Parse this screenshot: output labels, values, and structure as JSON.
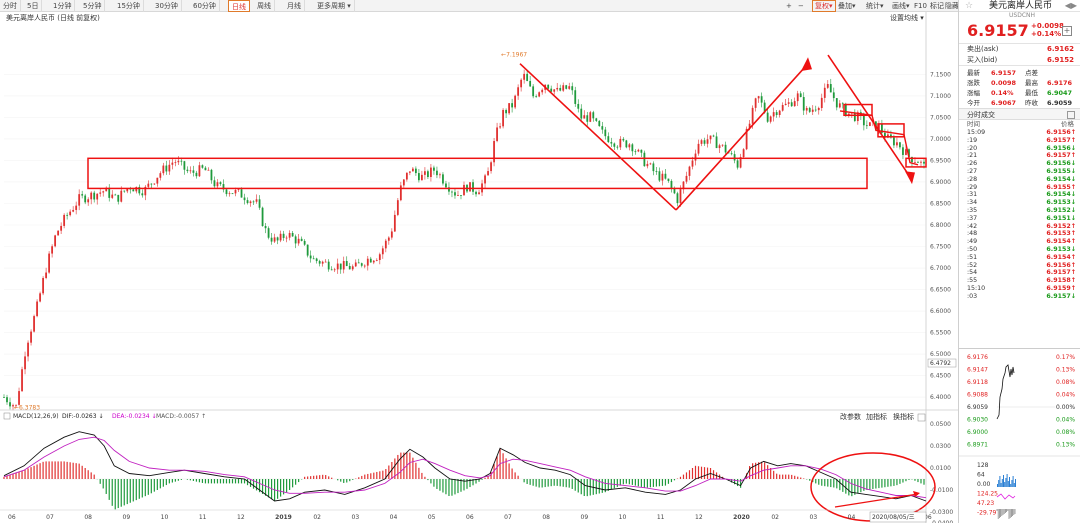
{
  "toolbar": {
    "periods": [
      "分时",
      "5日",
      "1分钟",
      "5分钟",
      "15分钟",
      "30分钟",
      "60分钟",
      "日线",
      "周线",
      "月线",
      "更多周期"
    ],
    "active": "日线",
    "right_items": [
      "+",
      "−",
      "复权",
      "叠加",
      "统计",
      "画线",
      "F10",
      "标记",
      "隐藏"
    ]
  },
  "chart_data": [
    {
      "type": "candlestick",
      "title": "美元离岸人民币 (日线 前复权)",
      "settings_label": "设置均线",
      "y_ticks": [
        "7.1500",
        "7.1000",
        "7.0500",
        "7.0000",
        "6.9500",
        "6.9000",
        "6.8500",
        "6.8000",
        "6.7500",
        "6.7000",
        "6.6500",
        "6.6000",
        "6.5500",
        "6.5000",
        "6.4500",
        "6.4000"
      ],
      "y_range": [
        6.37,
        7.23
      ],
      "last_price_label": "6.4792",
      "x_ticks": [
        "06",
        "07",
        "08",
        "09",
        "10",
        "11",
        "12",
        "2019",
        "02",
        "03",
        "04",
        "05",
        "06",
        "07",
        "08",
        "09",
        "10",
        "11",
        "12",
        "2020",
        "02",
        "03",
        "04",
        "05",
        "06"
      ],
      "bold_x_ticks": [
        "2019",
        "2020"
      ],
      "annotations": [
        {
          "label": "6.3783",
          "value": 6.3783,
          "x_index": 4
        },
        {
          "label": "7.1967",
          "value": 7.1967,
          "x_index": 490
        }
      ],
      "series_path": [
        [
          0,
          6.4
        ],
        [
          12,
          6.378
        ],
        [
          22,
          6.52
        ],
        [
          32,
          6.6
        ],
        [
          42,
          6.7
        ],
        [
          52,
          6.78
        ],
        [
          62,
          6.82
        ],
        [
          75,
          6.86
        ],
        [
          88,
          6.87
        ],
        [
          100,
          6.88
        ],
        [
          112,
          6.86
        ],
        [
          125,
          6.89
        ],
        [
          140,
          6.88
        ],
        [
          155,
          6.92
        ],
        [
          170,
          6.95
        ],
        [
          185,
          6.92
        ],
        [
          200,
          6.93
        ],
        [
          212,
          6.89
        ],
        [
          225,
          6.88
        ],
        [
          238,
          6.87
        ],
        [
          252,
          6.85
        ],
        [
          262,
          6.78
        ],
        [
          272,
          6.76
        ],
        [
          282,
          6.78
        ],
        [
          295,
          6.76
        ],
        [
          308,
          6.72
        ],
        [
          322,
          6.71
        ],
        [
          336,
          6.705
        ],
        [
          350,
          6.7
        ],
        [
          362,
          6.72
        ],
        [
          374,
          6.73
        ],
        [
          386,
          6.78
        ],
        [
          395,
          6.88
        ],
        [
          405,
          6.93
        ],
        [
          418,
          6.91
        ],
        [
          430,
          6.93
        ],
        [
          442,
          6.895
        ],
        [
          452,
          6.87
        ],
        [
          462,
          6.89
        ],
        [
          472,
          6.88
        ],
        [
          482,
          6.91
        ],
        [
          490,
          7.0
        ],
        [
          498,
          7.06
        ],
        [
          508,
          7.08
        ],
        [
          518,
          7.15
        ],
        [
          528,
          7.1
        ],
        [
          540,
          7.13
        ],
        [
          552,
          7.11
        ],
        [
          565,
          7.12
        ],
        [
          575,
          7.05
        ],
        [
          585,
          7.05
        ],
        [
          598,
          7.01
        ],
        [
          612,
          6.99
        ],
        [
          625,
          6.99
        ],
        [
          638,
          6.95
        ],
        [
          650,
          6.92
        ],
        [
          662,
          6.9
        ],
        [
          672,
          6.86
        ],
        [
          682,
          6.92
        ],
        [
          692,
          6.99
        ],
        [
          702,
          7.0
        ],
        [
          712,
          6.99
        ],
        [
          722,
          6.97
        ],
        [
          732,
          6.94
        ],
        [
          742,
          7.02
        ],
        [
          752,
          7.1
        ],
        [
          762,
          7.05
        ],
        [
          772,
          7.07
        ],
        [
          782,
          7.08
        ],
        [
          792,
          7.1
        ],
        [
          802,
          7.06
        ],
        [
          812,
          7.08
        ],
        [
          822,
          7.12
        ],
        [
          832,
          7.08
        ],
        [
          842,
          7.06
        ],
        [
          852,
          7.05
        ],
        [
          862,
          7.03
        ],
        [
          872,
          7.03
        ],
        [
          882,
          7.0
        ],
        [
          892,
          6.99
        ],
        [
          902,
          6.96
        ],
        [
          912,
          6.95
        ],
        [
          920,
          6.93
        ]
      ]
    },
    {
      "type": "macd",
      "label_name": "MACD(12,26,9)",
      "dif_label": "DIF:-0.0263 ↓",
      "dea_label": "DEA:-0.0234 ↓",
      "macd_label": "MACD:-0.0057 ↑",
      "buttons": [
        "改参数",
        "加指标",
        "换指标"
      ],
      "y_ticks": [
        "0.0500",
        "0.0300",
        "0.0100",
        "-0.0100",
        "-0.0300",
        "-0.0400"
      ],
      "dif_path": [
        [
          0,
          0.003
        ],
        [
          20,
          0.012
        ],
        [
          40,
          0.028
        ],
        [
          60,
          0.038
        ],
        [
          75,
          0.043
        ],
        [
          90,
          0.04
        ],
        [
          100,
          0.03
        ],
        [
          110,
          0.012
        ],
        [
          125,
          0.005
        ],
        [
          145,
          0.003
        ],
        [
          165,
          0.006
        ],
        [
          180,
          0.008
        ],
        [
          200,
          0.005
        ],
        [
          220,
          0.002
        ],
        [
          240,
          0.0
        ],
        [
          255,
          -0.01
        ],
        [
          270,
          -0.02
        ],
        [
          285,
          -0.018
        ],
        [
          300,
          -0.012
        ],
        [
          320,
          -0.01
        ],
        [
          340,
          -0.014
        ],
        [
          360,
          -0.008
        ],
        [
          380,
          0.0
        ],
        [
          395,
          0.018
        ],
        [
          405,
          0.027
        ],
        [
          418,
          0.02
        ],
        [
          430,
          0.01
        ],
        [
          445,
          0.0
        ],
        [
          460,
          -0.002
        ],
        [
          475,
          0.0
        ],
        [
          485,
          0.005
        ],
        [
          495,
          0.028
        ],
        [
          508,
          0.022
        ],
        [
          520,
          0.015
        ],
        [
          535,
          0.01
        ],
        [
          550,
          0.008
        ],
        [
          565,
          0.004
        ],
        [
          580,
          -0.006
        ],
        [
          600,
          -0.01
        ],
        [
          620,
          -0.008
        ],
        [
          640,
          -0.012
        ],
        [
          660,
          -0.014
        ],
        [
          675,
          -0.01
        ],
        [
          690,
          0.0
        ],
        [
          705,
          0.005
        ],
        [
          720,
          0.0
        ],
        [
          735,
          -0.006
        ],
        [
          745,
          0.01
        ],
        [
          758,
          0.016
        ],
        [
          772,
          0.012
        ],
        [
          785,
          0.014
        ],
        [
          800,
          0.012
        ],
        [
          815,
          0.006
        ],
        [
          830,
          0.0
        ],
        [
          845,
          -0.012
        ],
        [
          860,
          -0.014
        ],
        [
          875,
          -0.016
        ],
        [
          890,
          -0.018
        ],
        [
          905,
          -0.015
        ],
        [
          920,
          -0.02
        ]
      ],
      "dea_path": [
        [
          0,
          0.002
        ],
        [
          20,
          0.008
        ],
        [
          40,
          0.02
        ],
        [
          60,
          0.03
        ],
        [
          75,
          0.036
        ],
        [
          90,
          0.038
        ],
        [
          100,
          0.035
        ],
        [
          110,
          0.026
        ],
        [
          125,
          0.016
        ],
        [
          145,
          0.01
        ],
        [
          165,
          0.008
        ],
        [
          180,
          0.008
        ],
        [
          200,
          0.007
        ],
        [
          220,
          0.004
        ],
        [
          240,
          0.002
        ],
        [
          255,
          -0.004
        ],
        [
          270,
          -0.01
        ],
        [
          285,
          -0.013
        ],
        [
          300,
          -0.013
        ],
        [
          320,
          -0.012
        ],
        [
          340,
          -0.012
        ],
        [
          360,
          -0.01
        ],
        [
          380,
          -0.004
        ],
        [
          395,
          0.006
        ],
        [
          405,
          0.015
        ],
        [
          418,
          0.018
        ],
        [
          430,
          0.014
        ],
        [
          445,
          0.008
        ],
        [
          460,
          0.003
        ],
        [
          475,
          0.001
        ],
        [
          485,
          0.003
        ],
        [
          495,
          0.014
        ],
        [
          508,
          0.018
        ],
        [
          520,
          0.017
        ],
        [
          535,
          0.014
        ],
        [
          550,
          0.011
        ],
        [
          565,
          0.008
        ],
        [
          580,
          0.002
        ],
        [
          600,
          -0.004
        ],
        [
          620,
          -0.006
        ],
        [
          640,
          -0.008
        ],
        [
          660,
          -0.011
        ],
        [
          675,
          -0.011
        ],
        [
          690,
          -0.006
        ],
        [
          705,
          0.0
        ],
        [
          720,
          0.0
        ],
        [
          735,
          -0.002
        ],
        [
          745,
          0.003
        ],
        [
          758,
          0.008
        ],
        [
          772,
          0.01
        ],
        [
          785,
          0.012
        ],
        [
          800,
          0.012
        ],
        [
          815,
          0.009
        ],
        [
          830,
          0.004
        ],
        [
          845,
          -0.004
        ],
        [
          860,
          -0.009
        ],
        [
          875,
          -0.012
        ],
        [
          890,
          -0.015
        ],
        [
          905,
          -0.015
        ],
        [
          920,
          -0.017
        ]
      ]
    }
  ],
  "sidebar": {
    "title": "美元离岸人民币",
    "code": "USDCNH",
    "price": "6.9157",
    "change": "+0.0098",
    "change_pct": "+0.14%",
    "ask_label": "卖出(ask)",
    "ask": "6.9162",
    "bid_label": "买入(bid)",
    "bid": "6.9152",
    "stats": [
      {
        "l1": "最新",
        "v1": "6.9157",
        "c1": "red",
        "l2": "点差",
        "v2": "",
        "c2": "red"
      },
      {
        "l1": "涨跌",
        "v1": "0.0098",
        "c1": "red",
        "l2": "最高",
        "v2": "6.9176",
        "c2": "red"
      },
      {
        "l1": "涨幅",
        "v1": "0.14%",
        "c1": "red",
        "l2": "最低",
        "v2": "6.9047",
        "c2": "green"
      },
      {
        "l1": "今开",
        "v1": "6.9067",
        "c1": "red",
        "l2": "昨收",
        "v2": "6.9059",
        "c2": "black"
      }
    ],
    "ticks_title": "分时成交",
    "ticks_col_time": "时间",
    "ticks_col_price": "价格",
    "ticks": [
      {
        "t": "15:09",
        "p": "6.9156↑",
        "c": "red"
      },
      {
        "t": ":19",
        "p": "6.9157↑",
        "c": "red"
      },
      {
        "t": ":20",
        "p": "6.9156↓",
        "c": "green"
      },
      {
        "t": ":21",
        "p": "6.9157↑",
        "c": "red"
      },
      {
        "t": ":26",
        "p": "6.9156↓",
        "c": "green"
      },
      {
        "t": ":27",
        "p": "6.9155↓",
        "c": "green"
      },
      {
        "t": ":28",
        "p": "6.9154↓",
        "c": "green"
      },
      {
        "t": ":29",
        "p": "6.9155↑",
        "c": "red"
      },
      {
        "t": ":31",
        "p": "6.9154↓",
        "c": "green"
      },
      {
        "t": ":34",
        "p": "6.9153↓",
        "c": "green"
      },
      {
        "t": ":35",
        "p": "6.9152↓",
        "c": "green"
      },
      {
        "t": ":37",
        "p": "6.9151↓",
        "c": "green"
      },
      {
        "t": ":42",
        "p": "6.9152↑",
        "c": "red"
      },
      {
        "t": ":48",
        "p": "6.9153↑",
        "c": "red"
      },
      {
        "t": ":49",
        "p": "6.9154↑",
        "c": "red"
      },
      {
        "t": ":50",
        "p": "6.9153↓",
        "c": "green"
      },
      {
        "t": ":51",
        "p": "6.9154↑",
        "c": "red"
      },
      {
        "t": ":52",
        "p": "6.9156↑",
        "c": "red"
      },
      {
        "t": ":54",
        "p": "6.9157↑",
        "c": "red"
      },
      {
        "t": ":55",
        "p": "6.9158↑",
        "c": "red"
      },
      {
        "t": "15:10",
        "p": "6.9159↑",
        "c": "red"
      },
      {
        "t": ":03",
        "p": "6.9157↓",
        "c": "green"
      }
    ],
    "mini_left": [
      "6.9176",
      "6.9147",
      "6.9118",
      "6.9088",
      "6.9059",
      "6.9030",
      "6.9000",
      "6.8971"
    ],
    "mini_left_colors": [
      "red",
      "red",
      "red",
      "red",
      "black",
      "green",
      "green",
      "green"
    ],
    "mini_right": [
      "0.17%",
      "0.13%",
      "0.08%",
      "0.04%",
      "0.00%",
      "0.04%",
      "0.08%",
      "0.13%"
    ],
    "mini_right_colors": [
      "red",
      "red",
      "red",
      "red",
      "black",
      "green",
      "green",
      "green"
    ],
    "mini_bottom": [
      "128",
      "64",
      "0.00",
      "124.25",
      "47.23",
      "-29.79"
    ]
  },
  "footer_date": "2020/08/05/三"
}
